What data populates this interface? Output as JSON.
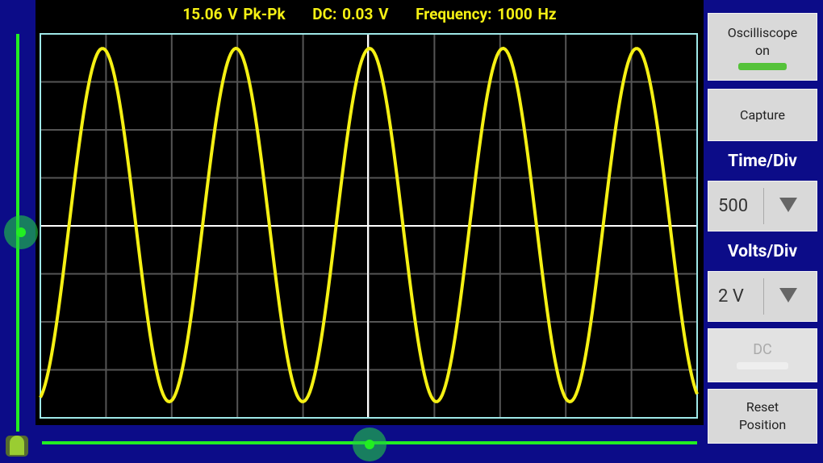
{
  "readout": {
    "pk_pk": "15.06 V Pk-Pk",
    "dc": "DC: 0.03 V",
    "frequency": "Frequency: 1000 Hz"
  },
  "controls": {
    "power_button": {
      "line1": "Oscilliscope",
      "line2": "on"
    },
    "capture_button": "Capture",
    "time_div": {
      "label": "Time/Div",
      "value": "500"
    },
    "volts_div": {
      "label": "Volts/Div",
      "value": "2 V"
    },
    "dc_button": "DC",
    "reset_button": {
      "line1": "Reset",
      "line2": "Position"
    }
  }
}
